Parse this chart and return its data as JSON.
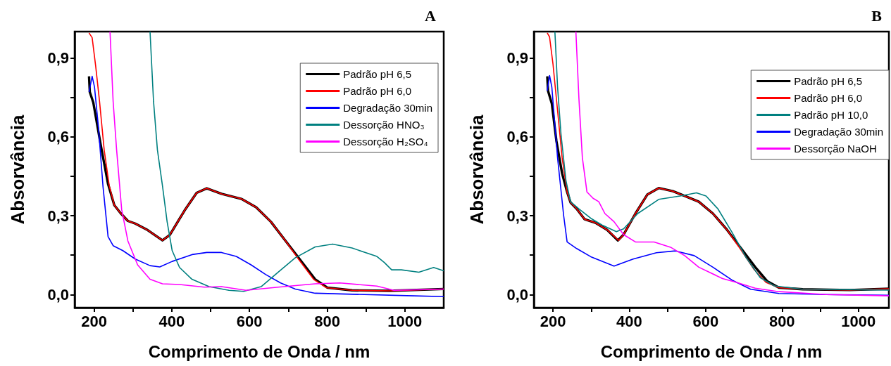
{
  "chart_data": [
    {
      "type": "line",
      "title": "A",
      "xlabel": "Comprimento de Onda / nm",
      "ylabel": "Absorvância",
      "xlim": [
        150,
        1100
      ],
      "ylim": [
        -0.05,
        1.0
      ],
      "xticks": [
        200,
        {
          "value": 300,
          "label": null
        },
        400,
        {
          "value": 500,
          "label": null
        },
        600,
        {
          "value": 700,
          "label": null
        },
        800,
        {
          "value": 900,
          "label": null
        },
        1000
      ],
      "yticks": [
        {
          "value": 0,
          "label": "0,0"
        },
        {
          "value": 0.15,
          "label": null
        },
        {
          "value": 0.3,
          "label": "0,3"
        },
        {
          "value": 0.45,
          "label": null
        },
        {
          "value": 0.6,
          "label": "0,6"
        },
        {
          "value": 0.75,
          "label": null
        },
        {
          "value": 0.9,
          "label": "0,9"
        }
      ],
      "grid": false,
      "legend": "top right",
      "series": [
        {
          "name": "Padrão pH 6,5",
          "color": "#000000",
          "x": [
            187,
            189,
            198,
            217,
            236,
            252,
            268,
            287,
            306,
            338,
            376,
            395,
            433,
            464,
            490,
            528,
            579,
            617,
            655,
            693,
            731,
            769,
            801,
            864,
            960,
            1100
          ],
          "values": [
            0.83,
            0.77,
            0.73,
            0.57,
            0.42,
            0.34,
            0.31,
            0.28,
            0.27,
            0.245,
            0.206,
            0.227,
            0.32,
            0.387,
            0.404,
            0.383,
            0.364,
            0.332,
            0.277,
            0.204,
            0.131,
            0.058,
            0.026,
            0.016,
            0.014,
            0.021
          ]
        },
        {
          "name": "Padrão pH 6,0",
          "color": "#ff0000",
          "x": [
            187,
            195,
            204,
            214,
            226,
            239,
            252,
            268,
            287,
            306,
            338,
            376,
            395,
            433,
            464,
            490,
            528,
            579,
            617,
            655,
            693,
            728,
            765,
            798,
            864,
            960,
            1100
          ],
          "values": [
            0.995,
            0.977,
            0.87,
            0.735,
            0.55,
            0.414,
            0.34,
            0.31,
            0.28,
            0.27,
            0.245,
            0.206,
            0.227,
            0.32,
            0.387,
            0.404,
            0.383,
            0.364,
            0.332,
            0.277,
            0.204,
            0.131,
            0.058,
            0.026,
            0.016,
            0.014,
            0.021
          ]
        },
        {
          "name": "Degradação 30min",
          "color": "#0000ff",
          "x": [
            187,
            195,
            201,
            211,
            223,
            236,
            249,
            274,
            306,
            344,
            369,
            401,
            452,
            490,
            528,
            566,
            604,
            642,
            680,
            718,
            769,
            896,
            1023,
            1100
          ],
          "values": [
            0.77,
            0.83,
            0.79,
            0.64,
            0.41,
            0.22,
            0.186,
            0.167,
            0.135,
            0.11,
            0.105,
            0.126,
            0.152,
            0.16,
            0.16,
            0.145,
            0.113,
            0.076,
            0.044,
            0.021,
            0.005,
            0.0,
            -0.005,
            -0.008
          ]
        },
        {
          "name": "Dessorção HNO₃",
          "color": "#008080",
          "x": [
            344,
            353,
            363,
            376,
            388,
            401,
            420,
            452,
            496,
            547,
            585,
            630,
            674,
            718,
            769,
            814,
            864,
            928,
            947,
            966,
            991,
            1036,
            1074,
            1100
          ],
          "values": [
            1.0,
            0.735,
            0.55,
            0.414,
            0.277,
            0.167,
            0.103,
            0.058,
            0.03,
            0.016,
            0.012,
            0.03,
            0.085,
            0.14,
            0.181,
            0.192,
            0.177,
            0.145,
            0.122,
            0.094,
            0.094,
            0.085,
            0.103,
            0.09
          ]
        },
        {
          "name": "Dessorção H₂SO₄",
          "color": "#ff00ff",
          "x": [
            241,
            249,
            258,
            271,
            287,
            312,
            344,
            376,
            420,
            484,
            528,
            591,
            674,
            769,
            833,
            928,
            972,
            1100
          ],
          "values": [
            1.0,
            0.735,
            0.55,
            0.323,
            0.204,
            0.113,
            0.058,
            0.041,
            0.038,
            0.028,
            0.03,
            0.016,
            0.028,
            0.041,
            0.044,
            0.032,
            0.016,
            0.021
          ]
        }
      ]
    },
    {
      "type": "line",
      "title": "B",
      "xlabel": "Comprimento de Onda / nm",
      "ylabel": "Absorvância",
      "xlim": [
        150,
        1080
      ],
      "ylim": [
        -0.05,
        1.0
      ],
      "xticks": [
        200,
        {
          "value": 300,
          "label": null
        },
        400,
        {
          "value": 500,
          "label": null
        },
        600,
        {
          "value": 700,
          "label": null
        },
        800,
        {
          "value": 900,
          "label": null
        },
        1000
      ],
      "yticks": [
        {
          "value": 0,
          "label": "0,0"
        },
        {
          "value": 0.15,
          "label": null
        },
        {
          "value": 0.3,
          "label": "0,3"
        },
        {
          "value": 0.45,
          "label": null
        },
        {
          "value": 0.6,
          "label": "0,6"
        },
        {
          "value": 0.75,
          "label": null
        },
        {
          "value": 0.9,
          "label": "0,9"
        }
      ],
      "grid": false,
      "legend": "top right",
      "series": [
        {
          "name": "Padrão pH 6,5",
          "color": "#000000",
          "x": [
            185,
            187,
            197,
            209,
            224,
            237,
            246,
            262,
            283,
            311,
            342,
            370,
            385,
            416,
            447,
            477,
            514,
            545,
            582,
            619,
            656,
            693,
            730,
            761,
            792,
            854,
            977,
            1080
          ],
          "values": [
            0.83,
            0.775,
            0.726,
            0.584,
            0.46,
            0.39,
            0.35,
            0.326,
            0.286,
            0.273,
            0.246,
            0.206,
            0.228,
            0.308,
            0.38,
            0.405,
            0.393,
            0.375,
            0.353,
            0.308,
            0.246,
            0.175,
            0.104,
            0.051,
            0.026,
            0.02,
            0.017,
            0.022
          ]
        },
        {
          "name": "Padrão pH 6,0",
          "color": "#ff0000",
          "x": [
            185,
            191,
            200,
            212,
            224,
            237,
            246,
            262,
            283,
            311,
            342,
            372,
            385,
            416,
            447,
            477,
            514,
            545,
            582,
            619,
            656,
            690,
            727,
            758,
            792,
            854,
            977,
            1080
          ],
          "values": [
            0.995,
            0.98,
            0.877,
            0.7,
            0.52,
            0.39,
            0.35,
            0.326,
            0.286,
            0.273,
            0.246,
            0.206,
            0.228,
            0.308,
            0.38,
            0.405,
            0.393,
            0.375,
            0.353,
            0.308,
            0.246,
            0.175,
            0.095,
            0.046,
            0.026,
            0.02,
            0.017,
            0.022
          ]
        },
        {
          "name": "Padrão pH 10,0",
          "color": "#008080",
          "x": [
            205,
            212,
            221,
            234,
            246,
            268,
            299,
            329,
            366,
            385,
            422,
            477,
            533,
            576,
            601,
            632,
            669,
            706,
            743,
            780,
            854,
            1080
          ],
          "values": [
            1.0,
            0.79,
            0.61,
            0.433,
            0.353,
            0.326,
            0.29,
            0.264,
            0.239,
            0.25,
            0.308,
            0.362,
            0.375,
            0.387,
            0.375,
            0.326,
            0.237,
            0.14,
            0.064,
            0.033,
            0.02,
            0.017
          ]
        },
        {
          "name": "Degradação 30min",
          "color": "#0000ff",
          "x": [
            185,
            191,
            197,
            212,
            228,
            237,
            262,
            299,
            360,
            410,
            471,
            521,
            570,
            619,
            669,
            718,
            792,
            915,
            1080
          ],
          "values": [
            0.775,
            0.833,
            0.789,
            0.52,
            0.3,
            0.2,
            0.175,
            0.144,
            0.108,
            0.135,
            0.159,
            0.166,
            0.148,
            0.104,
            0.055,
            0.02,
            0.004,
            0.0,
            -0.003
          ]
        },
        {
          "name": "Dessorção NaOH",
          "color": "#ff00ff",
          "x": [
            260,
            268,
            277,
            289,
            305,
            320,
            336,
            360,
            385,
            416,
            465,
            508,
            545,
            582,
            644,
            681,
            730,
            792,
            915,
            1080
          ],
          "values": [
            1.0,
            0.744,
            0.52,
            0.39,
            0.366,
            0.353,
            0.308,
            0.277,
            0.228,
            0.2,
            0.2,
            0.18,
            0.148,
            0.104,
            0.061,
            0.046,
            0.024,
            0.011,
            0.0,
            -0.005
          ]
        }
      ]
    }
  ]
}
